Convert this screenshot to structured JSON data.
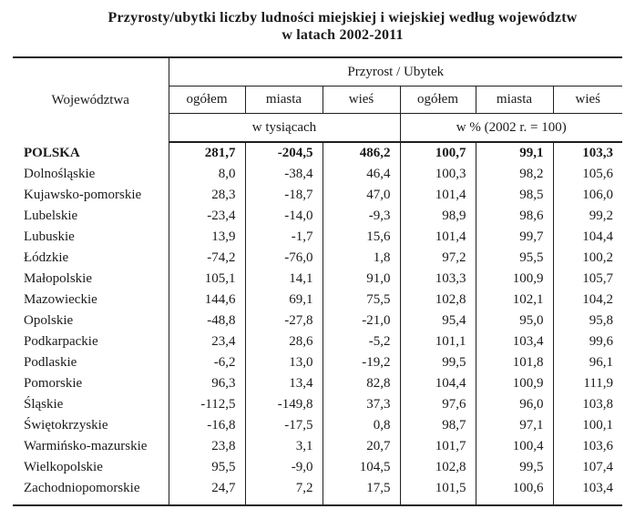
{
  "title": {
    "line1": "Przyrosty/ubytki liczby ludności miejskiej i wiejskiej według województw",
    "line2": "w latach 2002-2011"
  },
  "table": {
    "corner_header": "Województwa",
    "group_header": "Przyrost / Ubytek",
    "sub_headers": [
      "ogółem",
      "miasta",
      "wieś",
      "ogółem",
      "miasta",
      "wieś"
    ],
    "unit_headers": [
      "w tysiącach",
      "w % (2002 r. = 100)"
    ],
    "rows": [
      {
        "name": "POLSKA",
        "bold": true,
        "values": [
          "281,7",
          "-204,5",
          "486,2",
          "100,7",
          "99,1",
          "103,3"
        ]
      },
      {
        "name": "Dolnośląskie",
        "bold": false,
        "values": [
          "8,0",
          "-38,4",
          "46,4",
          "100,3",
          "98,2",
          "105,6"
        ]
      },
      {
        "name": "Kujawsko-pomorskie",
        "bold": false,
        "values": [
          "28,3",
          "-18,7",
          "47,0",
          "101,4",
          "98,5",
          "106,0"
        ]
      },
      {
        "name": "Lubelskie",
        "bold": false,
        "values": [
          "-23,4",
          "-14,0",
          "-9,3",
          "98,9",
          "98,6",
          "99,2"
        ]
      },
      {
        "name": "Lubuskie",
        "bold": false,
        "values": [
          "13,9",
          "-1,7",
          "15,6",
          "101,4",
          "99,7",
          "104,4"
        ]
      },
      {
        "name": "Łódzkie",
        "bold": false,
        "values": [
          "-74,2",
          "-76,0",
          "1,8",
          "97,2",
          "95,5",
          "100,2"
        ]
      },
      {
        "name": "Małopolskie",
        "bold": false,
        "values": [
          "105,1",
          "14,1",
          "91,0",
          "103,3",
          "100,9",
          "105,7"
        ]
      },
      {
        "name": "Mazowieckie",
        "bold": false,
        "values": [
          "144,6",
          "69,1",
          "75,5",
          "102,8",
          "102,1",
          "104,2"
        ]
      },
      {
        "name": "Opolskie",
        "bold": false,
        "values": [
          "-48,8",
          "-27,8",
          "-21,0",
          "95,4",
          "95,0",
          "95,8"
        ]
      },
      {
        "name": "Podkarpackie",
        "bold": false,
        "values": [
          "23,4",
          "28,6",
          "-5,2",
          "101,1",
          "103,4",
          "99,6"
        ]
      },
      {
        "name": "Podlaskie",
        "bold": false,
        "values": [
          "-6,2",
          "13,0",
          "-19,2",
          "99,5",
          "101,8",
          "96,1"
        ]
      },
      {
        "name": "Pomorskie",
        "bold": false,
        "values": [
          "96,3",
          "13,4",
          "82,8",
          "104,4",
          "100,9",
          "111,9"
        ]
      },
      {
        "name": "Śląskie",
        "bold": false,
        "values": [
          "-112,5",
          "-149,8",
          "37,3",
          "97,6",
          "96,0",
          "103,8"
        ]
      },
      {
        "name": "Świętokrzyskie",
        "bold": false,
        "values": [
          "-16,8",
          "-17,5",
          "0,8",
          "98,7",
          "97,1",
          "100,1"
        ]
      },
      {
        "name": "Warmińsko-mazurskie",
        "bold": false,
        "values": [
          "23,8",
          "3,1",
          "20,7",
          "101,7",
          "100,4",
          "103,6"
        ]
      },
      {
        "name": "Wielkopolskie",
        "bold": false,
        "values": [
          "95,5",
          "-9,0",
          "104,5",
          "102,8",
          "99,5",
          "107,4"
        ]
      },
      {
        "name": "Zachodniopomorskie",
        "bold": false,
        "values": [
          "24,7",
          "7,2",
          "17,5",
          "101,5",
          "100,6",
          "103,4"
        ]
      }
    ]
  }
}
